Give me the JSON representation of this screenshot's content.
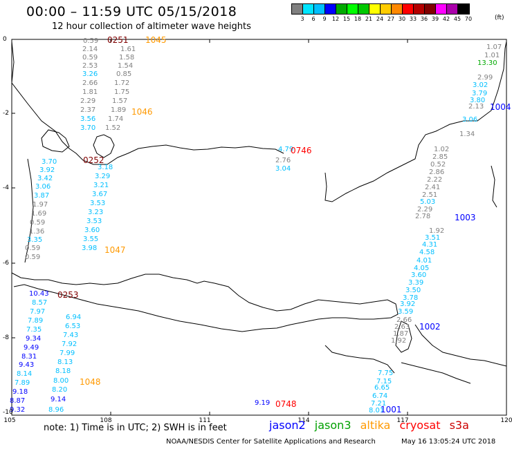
{
  "header": {
    "title": "00:00 – 11:59 UTC 05/15/2018",
    "subtitle": "12 hour collection of altimeter wave heights"
  },
  "colorbar": {
    "colors": [
      "#808080",
      "#00e5ff",
      "#00bfff",
      "#0000ff",
      "#00aa00",
      "#00ff00",
      "#00c800",
      "#ffff00",
      "#ffcc00",
      "#ff8800",
      "#ff0000",
      "#b40000",
      "#800000",
      "#ff00ff",
      "#aa00aa",
      "#000000"
    ],
    "ticks": [
      "3",
      "6",
      "9",
      "12",
      "15",
      "18",
      "21",
      "24",
      "27",
      "30",
      "33",
      "36",
      "39",
      "42",
      "45",
      "70"
    ],
    "unit": "(ft)"
  },
  "axes": {
    "y_labels": [
      "0",
      "-2",
      "-4",
      "-6",
      "-8",
      "-10"
    ],
    "x_labels": [
      "105",
      "108",
      "111",
      "114",
      "117",
      "120"
    ]
  },
  "note": "note: 1) Time is in UTC; 2) SWH is in feet",
  "satellites": [
    {
      "name": "jason2",
      "color": "#0000ff"
    },
    {
      "name": "jason3",
      "color": "#00a000"
    },
    {
      "name": "altika",
      "color": "#ff9900"
    },
    {
      "name": "cryosat",
      "color": "#ff0000"
    },
    {
      "name": "s3a",
      "color": "#cc0000"
    }
  ],
  "credit": "NOAA/NESDIS Center for Satellite Applications and Research",
  "timestamp": "May 16 13:05:24 UTC 2018",
  "pass_times": [
    {
      "text": "0251",
      "color": "#800000"
    },
    {
      "text": "1045",
      "color": "#ff9900"
    },
    {
      "text": "1046",
      "color": "#ff9900"
    },
    {
      "text": "0252",
      "color": "#800000"
    },
    {
      "text": "0746",
      "color": "#ff0000"
    },
    {
      "text": "1004",
      "color": "#0000ff"
    },
    {
      "text": "1003",
      "color": "#0000ff"
    },
    {
      "text": "1047",
      "color": "#ff9900"
    },
    {
      "text": "0253",
      "color": "#800000"
    },
    {
      "text": "1002",
      "color": "#0000ff"
    },
    {
      "text": "1048",
      "color": "#ff9900"
    },
    {
      "text": "0748",
      "color": "#ff0000"
    },
    {
      "text": "1001",
      "color": "#0000ff"
    }
  ],
  "wave_heights": [
    {
      "text": "0.59",
      "color": "#808080"
    },
    {
      "text": "2.14",
      "color": "#808080"
    },
    {
      "text": "0.59",
      "color": "#808080"
    },
    {
      "text": "2.53",
      "color": "#808080"
    },
    {
      "text": "3.26",
      "color": "#00bfff"
    },
    {
      "text": "2.66",
      "color": "#808080"
    },
    {
      "text": "1.81",
      "color": "#808080"
    },
    {
      "text": "2.29",
      "color": "#808080"
    },
    {
      "text": "2.37",
      "color": "#808080"
    },
    {
      "text": "3.56",
      "color": "#00bfff"
    },
    {
      "text": "3.70",
      "color": "#00bfff"
    },
    {
      "text": "1.61",
      "color": "#808080"
    },
    {
      "text": "1.58",
      "color": "#808080"
    },
    {
      "text": "1.54",
      "color": "#808080"
    },
    {
      "text": "0.85",
      "color": "#808080"
    },
    {
      "text": "1.72",
      "color": "#808080"
    },
    {
      "text": "1.75",
      "color": "#808080"
    },
    {
      "text": "1.57",
      "color": "#808080"
    },
    {
      "text": "1.89",
      "color": "#808080"
    },
    {
      "text": "1.74",
      "color": "#808080"
    },
    {
      "text": "1.52",
      "color": "#808080"
    },
    {
      "text": "3.70",
      "color": "#00bfff"
    },
    {
      "text": "3.92",
      "color": "#00bfff"
    },
    {
      "text": "3.42",
      "color": "#00bfff"
    },
    {
      "text": "3.06",
      "color": "#00bfff"
    },
    {
      "text": "3.87",
      "color": "#00bfff"
    },
    {
      "text": "1.97",
      "color": "#808080"
    },
    {
      "text": "1.69",
      "color": "#808080"
    },
    {
      "text": "0.59",
      "color": "#808080"
    },
    {
      "text": "1.36",
      "color": "#808080"
    },
    {
      "text": "3.35",
      "color": "#00bfff"
    },
    {
      "text": "0.59",
      "color": "#808080"
    },
    {
      "text": "0.59",
      "color": "#808080"
    },
    {
      "text": "3.18",
      "color": "#00bfff"
    },
    {
      "text": "3.29",
      "color": "#00bfff"
    },
    {
      "text": "3.21",
      "color": "#00bfff"
    },
    {
      "text": "3.67",
      "color": "#00bfff"
    },
    {
      "text": "3.53",
      "color": "#00bfff"
    },
    {
      "text": "3.23",
      "color": "#00bfff"
    },
    {
      "text": "3.53",
      "color": "#00bfff"
    },
    {
      "text": "3.60",
      "color": "#00bfff"
    },
    {
      "text": "3.55",
      "color": "#00bfff"
    },
    {
      "text": "3.98",
      "color": "#00bfff"
    },
    {
      "text": "4.79",
      "color": "#00bfff"
    },
    {
      "text": "2.76",
      "color": "#808080"
    },
    {
      "text": "3.04",
      "color": "#00bfff"
    },
    {
      "text": "1.07",
      "color": "#808080"
    },
    {
      "text": "1.01",
      "color": "#808080"
    },
    {
      "text": "13.30",
      "color": "#00aa00"
    },
    {
      "text": "2.99",
      "color": "#808080"
    },
    {
      "text": "3.02",
      "color": "#00bfff"
    },
    {
      "text": "3.79",
      "color": "#00bfff"
    },
    {
      "text": "3.80",
      "color": "#00bfff"
    },
    {
      "text": "2.13",
      "color": "#808080"
    },
    {
      "text": "3.06",
      "color": "#00bfff"
    },
    {
      "text": "1.34",
      "color": "#808080"
    },
    {
      "text": "1.02",
      "color": "#808080"
    },
    {
      "text": "2.85",
      "color": "#808080"
    },
    {
      "text": "0.52",
      "color": "#808080"
    },
    {
      "text": "2.86",
      "color": "#808080"
    },
    {
      "text": "2.22",
      "color": "#808080"
    },
    {
      "text": "2.41",
      "color": "#808080"
    },
    {
      "text": "2.51",
      "color": "#808080"
    },
    {
      "text": "5.03",
      "color": "#00bfff"
    },
    {
      "text": "2.29",
      "color": "#808080"
    },
    {
      "text": "2.78",
      "color": "#808080"
    },
    {
      "text": "1.92",
      "color": "#808080"
    },
    {
      "text": "3.51",
      "color": "#00bfff"
    },
    {
      "text": "4.31",
      "color": "#00bfff"
    },
    {
      "text": "4.58",
      "color": "#00bfff"
    },
    {
      "text": "4.01",
      "color": "#00bfff"
    },
    {
      "text": "4.05",
      "color": "#00bfff"
    },
    {
      "text": "3.60",
      "color": "#00bfff"
    },
    {
      "text": "3.39",
      "color": "#00bfff"
    },
    {
      "text": "3.50",
      "color": "#00bfff"
    },
    {
      "text": "3.78",
      "color": "#00bfff"
    },
    {
      "text": "3.92",
      "color": "#00bfff"
    },
    {
      "text": "3.59",
      "color": "#00bfff"
    },
    {
      "text": "2.66",
      "color": "#808080"
    },
    {
      "text": "2.63",
      "color": "#808080"
    },
    {
      "text": "1.87",
      "color": "#808080"
    },
    {
      "text": "1.92",
      "color": "#808080"
    },
    {
      "text": "10.43",
      "color": "#0000ff"
    },
    {
      "text": "8.57",
      "color": "#00bfff"
    },
    {
      "text": "7.97",
      "color": "#00bfff"
    },
    {
      "text": "7.89",
      "color": "#00bfff"
    },
    {
      "text": "7.35",
      "color": "#00bfff"
    },
    {
      "text": "9.34",
      "color": "#0000ff"
    },
    {
      "text": "9.49",
      "color": "#0000ff"
    },
    {
      "text": "8.31",
      "color": "#0000ff"
    },
    {
      "text": "9.43",
      "color": "#0000ff"
    },
    {
      "text": "8.14",
      "color": "#00bfff"
    },
    {
      "text": "7.89",
      "color": "#00bfff"
    },
    {
      "text": "9.18",
      "color": "#0000ff"
    },
    {
      "text": "8.87",
      "color": "#0000ff"
    },
    {
      "text": "9.32",
      "color": "#0000ff"
    },
    {
      "text": "6.94",
      "color": "#00bfff"
    },
    {
      "text": "6.53",
      "color": "#00bfff"
    },
    {
      "text": "7.43",
      "color": "#00bfff"
    },
    {
      "text": "7.92",
      "color": "#00bfff"
    },
    {
      "text": "7.99",
      "color": "#00bfff"
    },
    {
      "text": "8.13",
      "color": "#00bfff"
    },
    {
      "text": "8.18",
      "color": "#00bfff"
    },
    {
      "text": "8.00",
      "color": "#00bfff"
    },
    {
      "text": "8.20",
      "color": "#00bfff"
    },
    {
      "text": "9.14",
      "color": "#0000ff"
    },
    {
      "text": "8.96",
      "color": "#00bfff"
    },
    {
      "text": "9.19",
      "color": "#0000ff"
    },
    {
      "text": "7.75",
      "color": "#00bfff"
    },
    {
      "text": "7.15",
      "color": "#00bfff"
    },
    {
      "text": "6.65",
      "color": "#00bfff"
    },
    {
      "text": "6.74",
      "color": "#00bfff"
    },
    {
      "text": "7.21",
      "color": "#00bfff"
    },
    {
      "text": "8.01",
      "color": "#00bfff"
    }
  ]
}
